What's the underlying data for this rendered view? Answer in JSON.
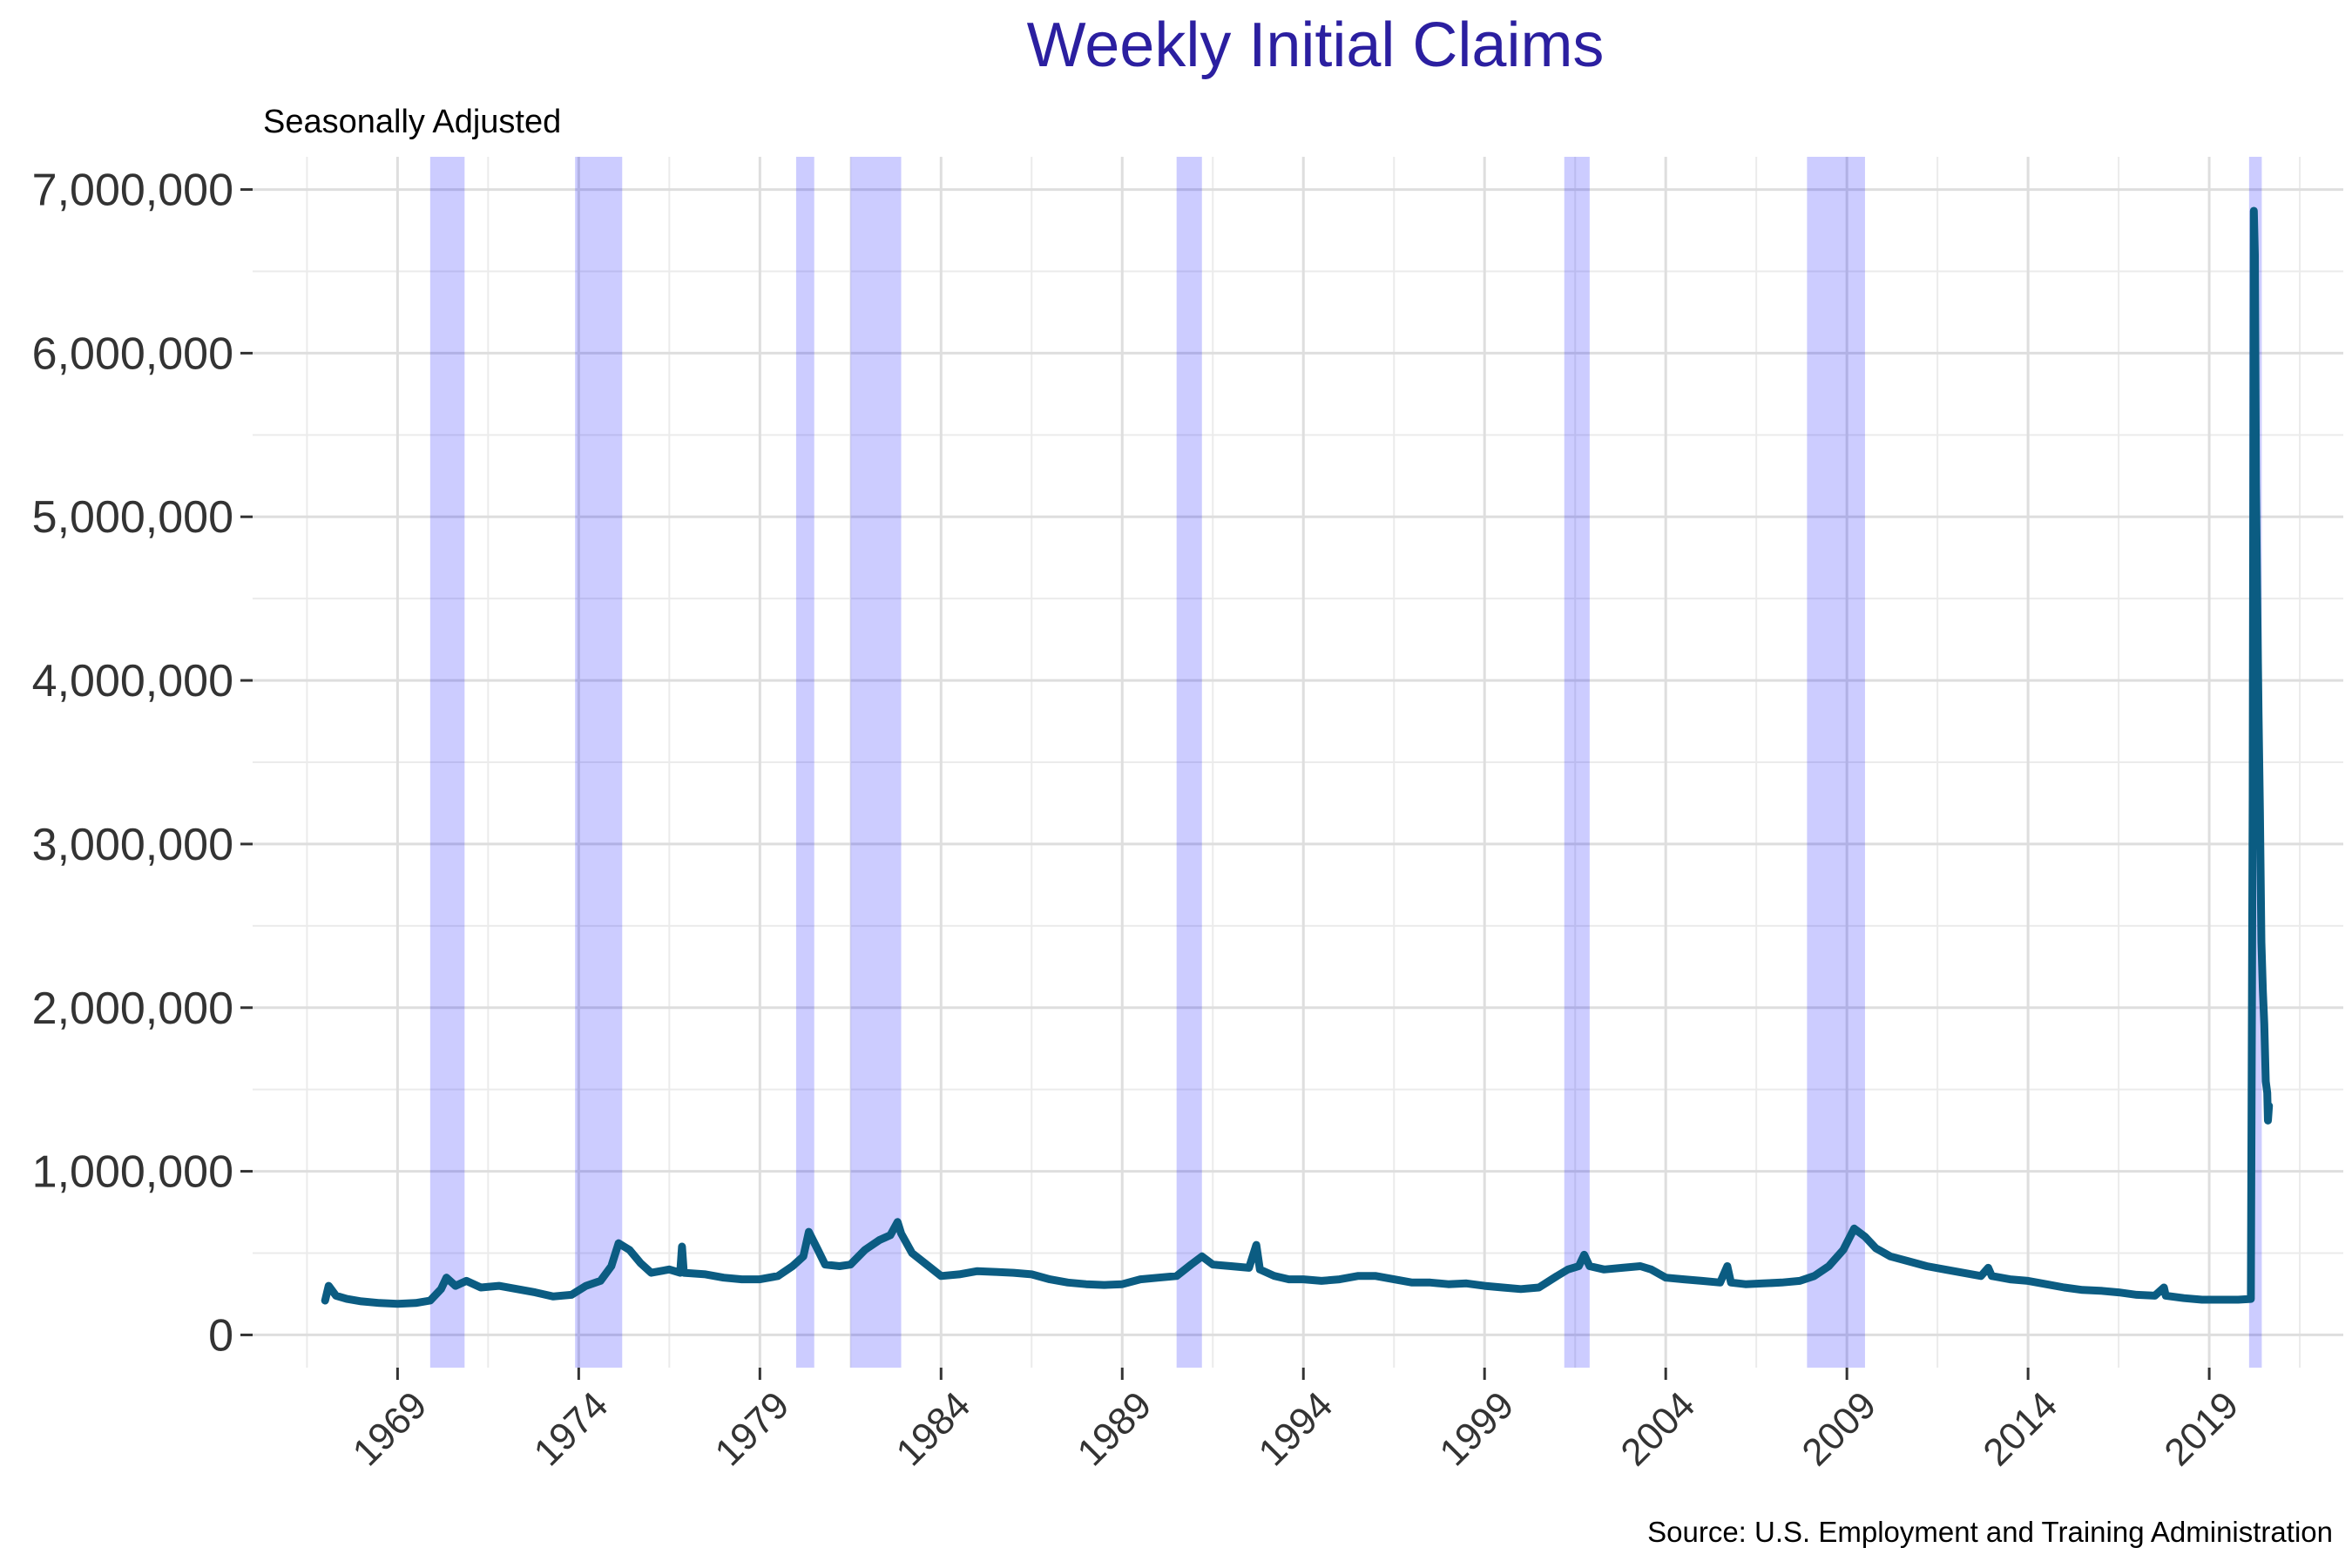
{
  "chart_data": {
    "type": "line",
    "title": "Weekly Initial Claims",
    "subtitle": "Seasonally Adjusted",
    "source": "Source: U.S. Employment and Training Administration",
    "xlabel": "",
    "ylabel": "",
    "xlim": [
      1965.0,
      2022.7
    ],
    "ylim": [
      -200000,
      7200000
    ],
    "grid": true,
    "legend": "none",
    "y_ticks": [
      {
        "value": 0,
        "label": "0"
      },
      {
        "value": 1000000,
        "label": "1,000,000"
      },
      {
        "value": 2000000,
        "label": "2,000,000"
      },
      {
        "value": 3000000,
        "label": "3,000,000"
      },
      {
        "value": 4000000,
        "label": "4,000,000"
      },
      {
        "value": 5000000,
        "label": "5,000,000"
      },
      {
        "value": 6000000,
        "label": "6,000,000"
      },
      {
        "value": 7000000,
        "label": "7,000,000"
      }
    ],
    "x_ticks": [
      {
        "value": 1969,
        "label": "1969"
      },
      {
        "value": 1974,
        "label": "1974"
      },
      {
        "value": 1979,
        "label": "1979"
      },
      {
        "value": 1984,
        "label": "1984"
      },
      {
        "value": 1989,
        "label": "1989"
      },
      {
        "value": 1994,
        "label": "1994"
      },
      {
        "value": 1999,
        "label": "1999"
      },
      {
        "value": 2004,
        "label": "2004"
      },
      {
        "value": 2009,
        "label": "2009"
      },
      {
        "value": 2014,
        "label": "2014"
      },
      {
        "value": 2019,
        "label": "2019"
      }
    ],
    "recessions": [
      {
        "start": 1969.9,
        "end": 1970.85
      },
      {
        "start": 1973.9,
        "end": 1975.2
      },
      {
        "start": 1980.0,
        "end": 1980.5
      },
      {
        "start": 1981.5,
        "end": 1982.9
      },
      {
        "start": 1990.5,
        "end": 1991.2
      },
      {
        "start": 2001.2,
        "end": 2001.9
      },
      {
        "start": 2007.9,
        "end": 2009.5
      },
      {
        "start": 2020.1,
        "end": 2020.45
      }
    ],
    "series": [
      {
        "color": "#0b5c82",
        "points": [
          [
            1967.0,
            210000
          ],
          [
            1967.1,
            300000
          ],
          [
            1967.3,
            240000
          ],
          [
            1967.6,
            220000
          ],
          [
            1968.0,
            205000
          ],
          [
            1968.5,
            195000
          ],
          [
            1969.0,
            190000
          ],
          [
            1969.5,
            195000
          ],
          [
            1969.9,
            210000
          ],
          [
            1970.2,
            280000
          ],
          [
            1970.35,
            350000
          ],
          [
            1970.6,
            300000
          ],
          [
            1970.9,
            330000
          ],
          [
            1971.3,
            290000
          ],
          [
            1971.8,
            300000
          ],
          [
            1972.3,
            280000
          ],
          [
            1972.8,
            260000
          ],
          [
            1973.3,
            235000
          ],
          [
            1973.8,
            245000
          ],
          [
            1974.2,
            300000
          ],
          [
            1974.6,
            330000
          ],
          [
            1974.9,
            420000
          ],
          [
            1975.1,
            560000
          ],
          [
            1975.4,
            520000
          ],
          [
            1975.7,
            440000
          ],
          [
            1976.0,
            380000
          ],
          [
            1976.5,
            400000
          ],
          [
            1976.8,
            380000
          ],
          [
            1976.85,
            540000
          ],
          [
            1976.9,
            380000
          ],
          [
            1977.5,
            370000
          ],
          [
            1978.0,
            350000
          ],
          [
            1978.5,
            340000
          ],
          [
            1979.0,
            340000
          ],
          [
            1979.5,
            360000
          ],
          [
            1979.9,
            420000
          ],
          [
            1980.2,
            480000
          ],
          [
            1980.35,
            630000
          ],
          [
            1980.6,
            520000
          ],
          [
            1980.8,
            430000
          ],
          [
            1981.2,
            420000
          ],
          [
            1981.5,
            430000
          ],
          [
            1981.9,
            520000
          ],
          [
            1982.3,
            580000
          ],
          [
            1982.6,
            610000
          ],
          [
            1982.8,
            690000
          ],
          [
            1982.9,
            620000
          ],
          [
            1983.2,
            500000
          ],
          [
            1983.6,
            430000
          ],
          [
            1984.0,
            360000
          ],
          [
            1984.5,
            370000
          ],
          [
            1985.0,
            390000
          ],
          [
            1985.5,
            385000
          ],
          [
            1986.0,
            380000
          ],
          [
            1986.5,
            370000
          ],
          [
            1987.0,
            340000
          ],
          [
            1987.5,
            320000
          ],
          [
            1988.0,
            310000
          ],
          [
            1988.5,
            305000
          ],
          [
            1989.0,
            310000
          ],
          [
            1989.5,
            340000
          ],
          [
            1990.0,
            350000
          ],
          [
            1990.5,
            360000
          ],
          [
            1990.9,
            430000
          ],
          [
            1991.2,
            480000
          ],
          [
            1991.5,
            430000
          ],
          [
            1992.0,
            420000
          ],
          [
            1992.5,
            410000
          ],
          [
            1992.7,
            550000
          ],
          [
            1992.8,
            400000
          ],
          [
            1993.2,
            360000
          ],
          [
            1993.6,
            340000
          ],
          [
            1994.0,
            340000
          ],
          [
            1994.5,
            330000
          ],
          [
            1995.0,
            340000
          ],
          [
            1995.5,
            360000
          ],
          [
            1996.0,
            360000
          ],
          [
            1996.5,
            340000
          ],
          [
            1997.0,
            320000
          ],
          [
            1997.5,
            320000
          ],
          [
            1998.0,
            310000
          ],
          [
            1998.5,
            315000
          ],
          [
            1999.0,
            300000
          ],
          [
            1999.5,
            290000
          ],
          [
            2000.0,
            280000
          ],
          [
            2000.5,
            290000
          ],
          [
            2001.0,
            360000
          ],
          [
            2001.3,
            400000
          ],
          [
            2001.6,
            420000
          ],
          [
            2001.75,
            490000
          ],
          [
            2001.9,
            420000
          ],
          [
            2002.3,
            400000
          ],
          [
            2002.8,
            410000
          ],
          [
            2003.3,
            420000
          ],
          [
            2003.6,
            400000
          ],
          [
            2004.0,
            350000
          ],
          [
            2004.5,
            340000
          ],
          [
            2005.0,
            330000
          ],
          [
            2005.5,
            320000
          ],
          [
            2005.7,
            420000
          ],
          [
            2005.8,
            320000
          ],
          [
            2006.2,
            310000
          ],
          [
            2006.7,
            315000
          ],
          [
            2007.2,
            320000
          ],
          [
            2007.7,
            330000
          ],
          [
            2008.1,
            360000
          ],
          [
            2008.5,
            420000
          ],
          [
            2008.9,
            520000
          ],
          [
            2009.2,
            650000
          ],
          [
            2009.5,
            600000
          ],
          [
            2009.8,
            530000
          ],
          [
            2010.2,
            480000
          ],
          [
            2010.7,
            450000
          ],
          [
            2011.2,
            420000
          ],
          [
            2011.7,
            400000
          ],
          [
            2012.2,
            380000
          ],
          [
            2012.7,
            360000
          ],
          [
            2012.9,
            410000
          ],
          [
            2013.0,
            360000
          ],
          [
            2013.5,
            340000
          ],
          [
            2014.0,
            330000
          ],
          [
            2014.5,
            310000
          ],
          [
            2015.0,
            290000
          ],
          [
            2015.5,
            275000
          ],
          [
            2016.0,
            270000
          ],
          [
            2016.5,
            260000
          ],
          [
            2017.0,
            245000
          ],
          [
            2017.5,
            240000
          ],
          [
            2017.75,
            290000
          ],
          [
            2017.8,
            240000
          ],
          [
            2018.3,
            225000
          ],
          [
            2018.8,
            215000
          ],
          [
            2019.3,
            215000
          ],
          [
            2019.8,
            215000
          ],
          [
            2020.15,
            220000
          ],
          [
            2020.2,
            3300000
          ],
          [
            2020.23,
            6870000
          ],
          [
            2020.26,
            6600000
          ],
          [
            2020.29,
            5200000
          ],
          [
            2020.33,
            4400000
          ],
          [
            2020.36,
            3800000
          ],
          [
            2020.4,
            3200000
          ],
          [
            2020.44,
            2400000
          ],
          [
            2020.48,
            2100000
          ],
          [
            2020.52,
            1900000
          ],
          [
            2020.56,
            1550000
          ],
          [
            2020.6,
            1480000
          ],
          [
            2020.62,
            1310000
          ],
          [
            2020.65,
            1400000
          ]
        ]
      }
    ]
  }
}
